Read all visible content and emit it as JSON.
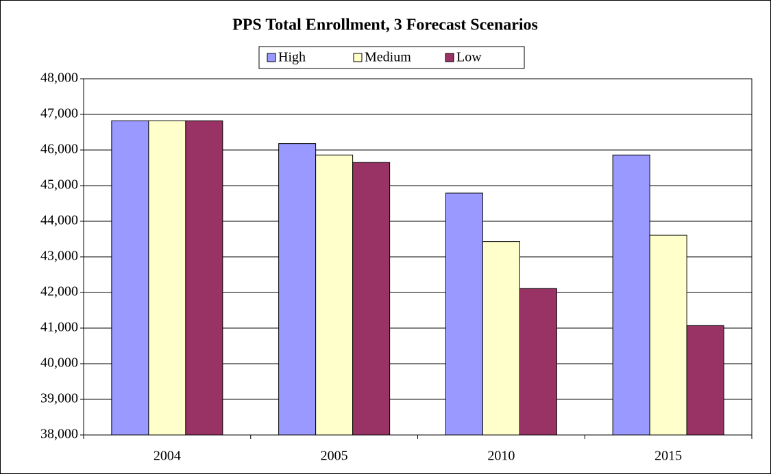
{
  "chart_data": {
    "type": "bar",
    "title": "PPS Total Enrollment, 3 Forecast Scenarios",
    "categories": [
      "2004",
      "2005",
      "2010",
      "2015"
    ],
    "series": [
      {
        "name": "High",
        "color": "#9999ff",
        "values": [
          46820,
          46180,
          44790,
          45860
        ]
      },
      {
        "name": "Medium",
        "color": "#ffffcc",
        "values": [
          46820,
          45860,
          43430,
          43610
        ]
      },
      {
        "name": "Low",
        "color": "#993366",
        "values": [
          46820,
          45650,
          42110,
          41070
        ]
      }
    ],
    "ylim": [
      38000,
      48000
    ],
    "yticks": [
      {
        "value": 38000,
        "label": "38,000"
      },
      {
        "value": 39000,
        "label": "39,000"
      },
      {
        "value": 40000,
        "label": "40,000"
      },
      {
        "value": 41000,
        "label": "41,000"
      },
      {
        "value": 42000,
        "label": "42,000"
      },
      {
        "value": 43000,
        "label": "43,000"
      },
      {
        "value": 44000,
        "label": "44,000"
      },
      {
        "value": 45000,
        "label": "45,000"
      },
      {
        "value": 46000,
        "label": "46,000"
      },
      {
        "value": 47000,
        "label": "47,000"
      },
      {
        "value": 48000,
        "label": "48,000"
      }
    ],
    "grid": true,
    "legend": "top"
  }
}
